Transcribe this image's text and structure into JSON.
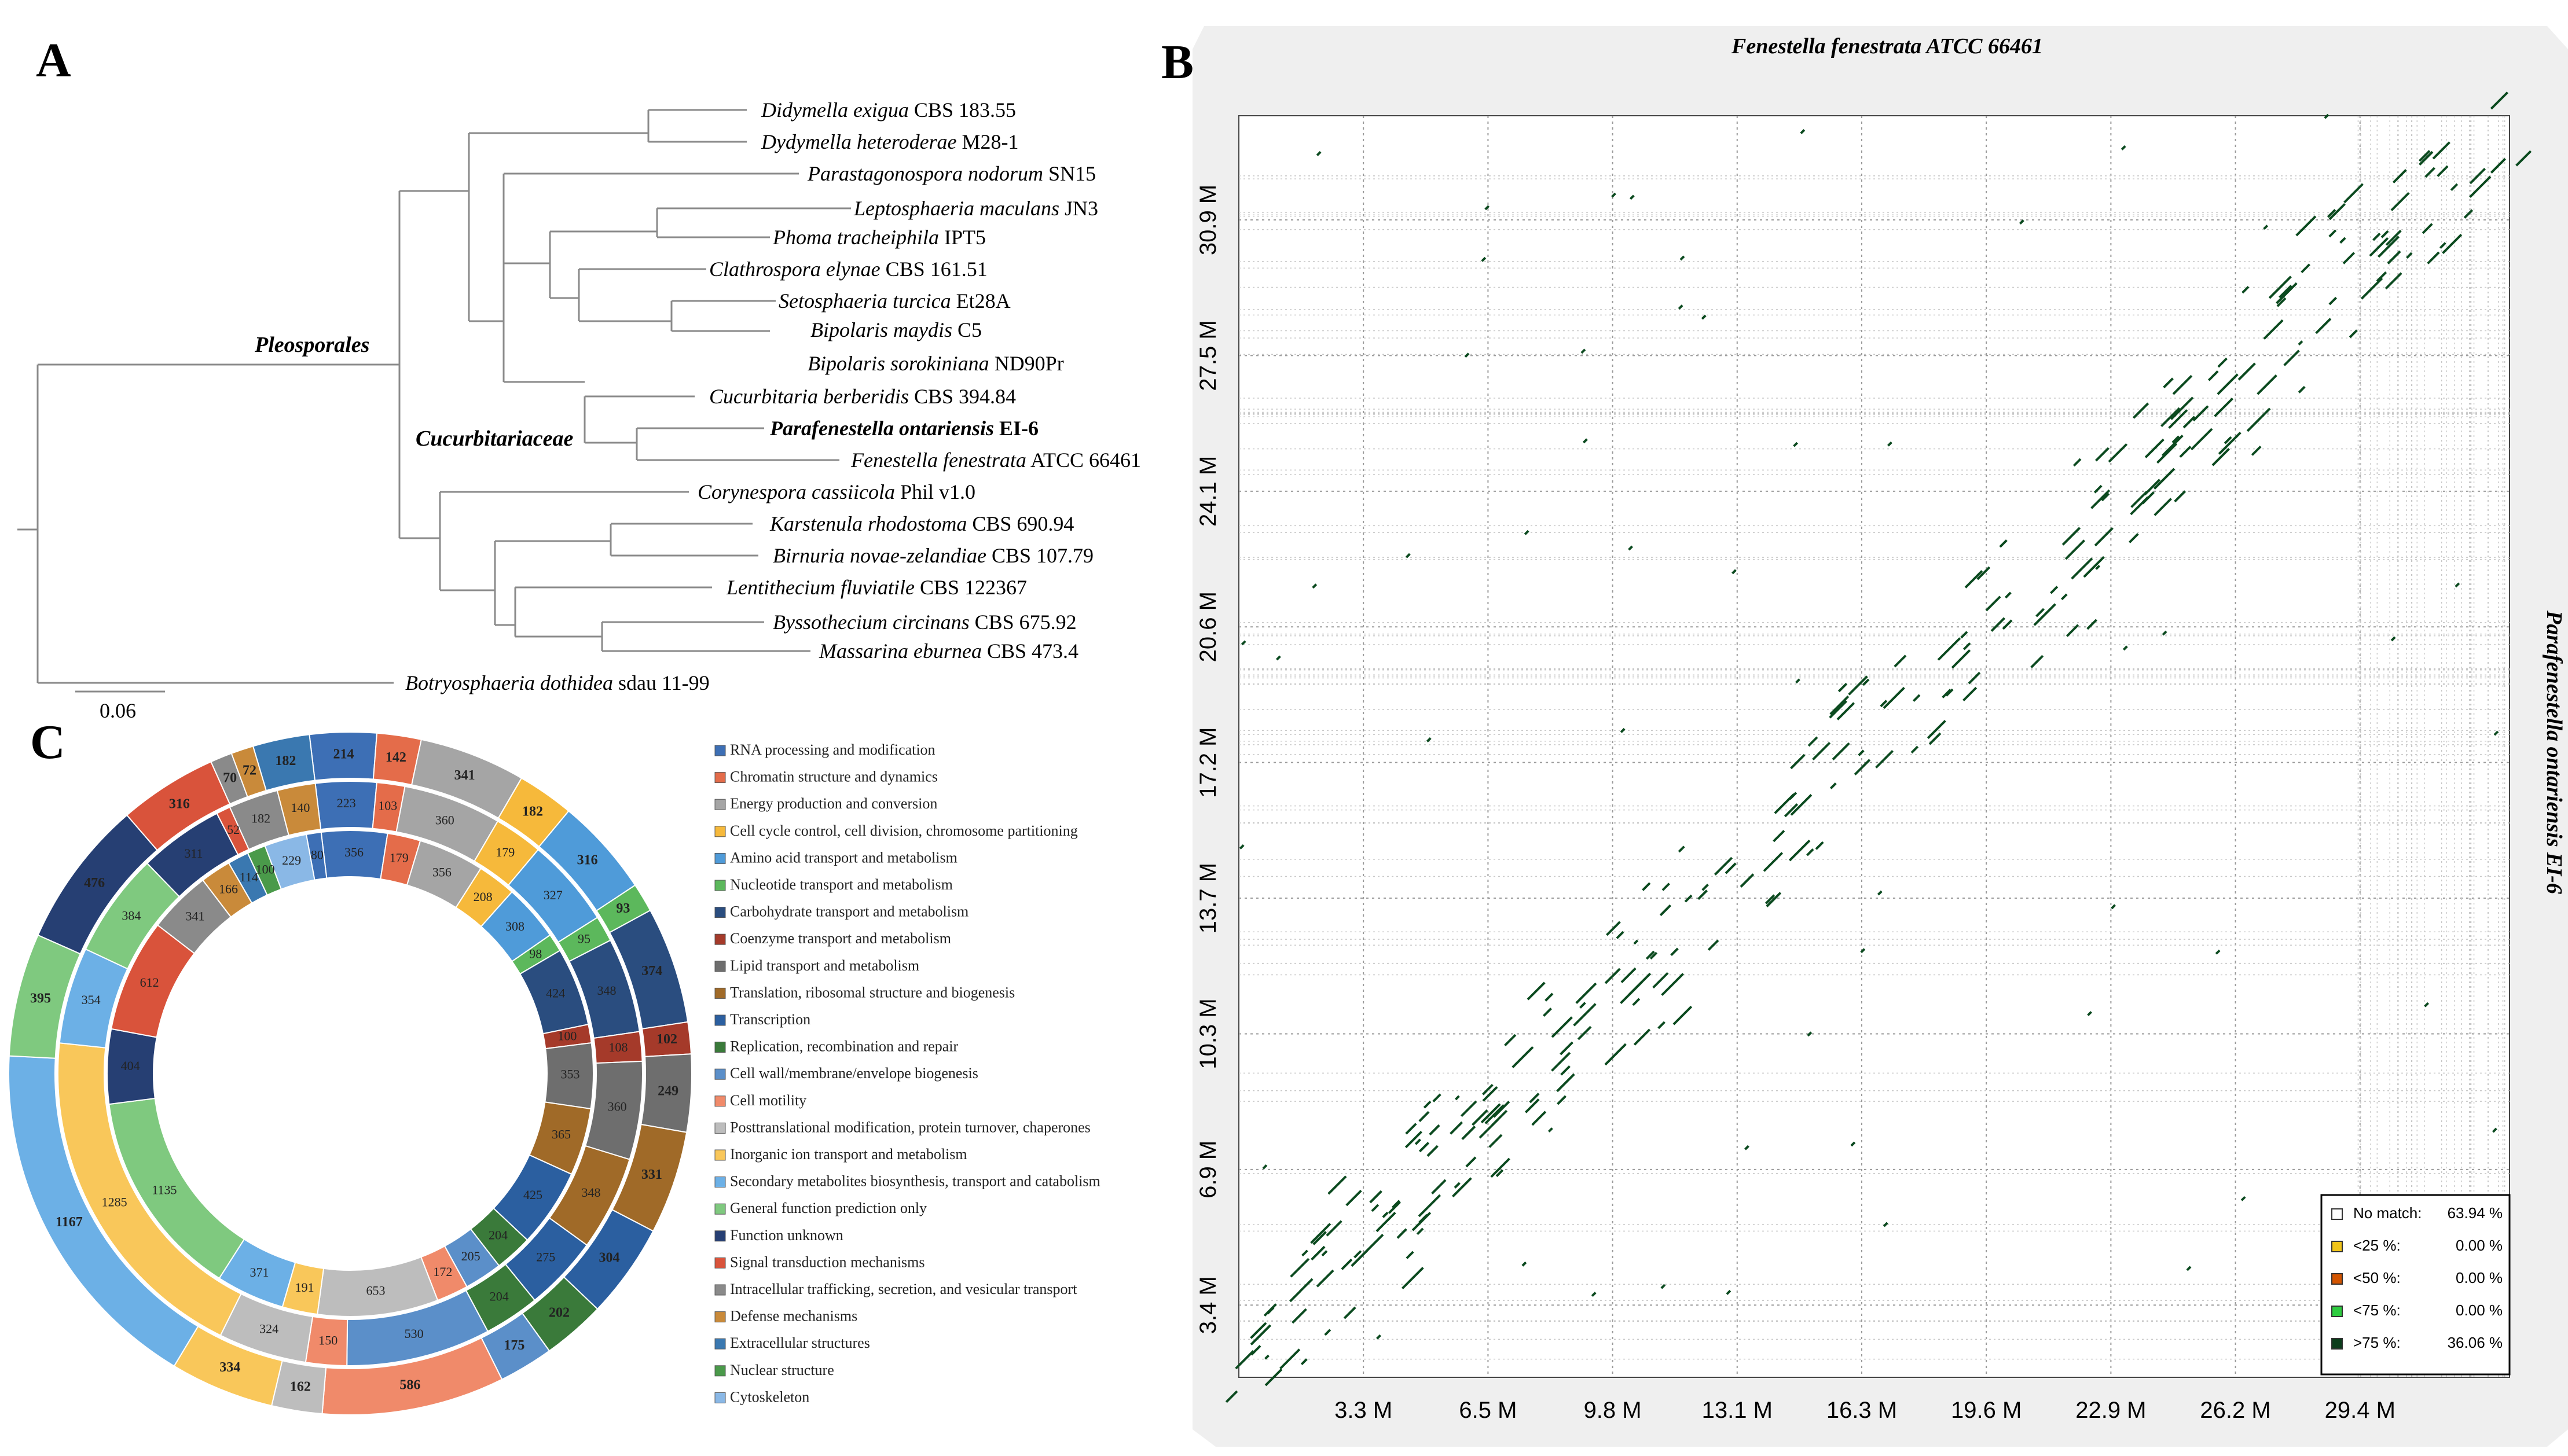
{
  "panels": {
    "a": "A",
    "b": "B",
    "c": "C"
  },
  "phylogeny": {
    "taxa": [
      {
        "genus": "Didymella exigua",
        "strain": " CBS 183.55"
      },
      {
        "genus": "Dydymella heteroderae",
        "strain": " M28-1"
      },
      {
        "genus": "Parastagonospora nodorum",
        "strain": " SN15"
      },
      {
        "genus": "Leptosphaeria maculans",
        "strain": " JN3"
      },
      {
        "genus": "Phoma tracheiphila",
        "strain": " IPT5"
      },
      {
        "genus": "Clathrospora elynae",
        "strain": " CBS 161.51"
      },
      {
        "genus": "Setosphaeria turcica",
        "strain": " Et28A"
      },
      {
        "genus": "Bipolaris maydis",
        "strain": " C5"
      },
      {
        "genus": "Bipolaris sorokiniana",
        "strain": " ND90Pr"
      },
      {
        "genus": "Cucurbitaria berberidis",
        "strain": " CBS 394.84"
      },
      {
        "genus": "Parafenestella ontariensis",
        "strain": " EI-6"
      },
      {
        "genus": "Fenestella fenestrata",
        "strain": " ATCC 66461"
      },
      {
        "genus": "Corynespora cassiicola",
        "strain": " Phil v1.0"
      },
      {
        "genus": "Karstenula rhodostoma",
        "strain": " CBS 690.94"
      },
      {
        "genus": "Birnuria novae-zelandiae",
        "strain": " CBS 107.79"
      },
      {
        "genus": "Lentithecium fluviatile",
        "strain": " CBS 122367"
      },
      {
        "genus": "Byssothecium circinans",
        "strain": " CBS  675.92"
      },
      {
        "genus": "Massarina eburnea",
        "strain": " CBS 473.4"
      },
      {
        "genus": "Botryosphaeria dothidea",
        "strain": " sdau 11-99"
      }
    ],
    "clade_order": "Pleosporales",
    "clade_family": "Cucurbitariaceae",
    "scale_label": "0.06"
  },
  "cog_legend": {
    "categories": [
      {
        "label": "RNA processing and modification",
        "color": "#3d6fb5"
      },
      {
        "label": "Chromatin structure and dynamics",
        "color": "#e46c4a"
      },
      {
        "label": "Energy production and conversion",
        "color": "#a5a5a5"
      },
      {
        "label": "Cell cycle control, cell division, chromosome partitioning",
        "color": "#f6b93b"
      },
      {
        "label": "Amino acid transport and metabolism",
        "color": "#4f9bd9"
      },
      {
        "label": "Nucleotide transport and metabolism",
        "color": "#5cb85c"
      },
      {
        "label": "Carbohydrate transport and metabolism",
        "color": "#2a4d7f"
      },
      {
        "label": "Coenzyme transport and metabolism",
        "color": "#a53a2a"
      },
      {
        "label": "Lipid transport and metabolism",
        "color": "#6e6e6e"
      },
      {
        "label": "Translation, ribosomal structure and biogenesis",
        "color": "#a06a28"
      },
      {
        "label": "Transcription",
        "color": "#2b5fa0"
      },
      {
        "label": "Replication, recombination and repair",
        "color": "#3a7a3a"
      },
      {
        "label": "Cell wall/membrane/envelope biogenesis",
        "color": "#5b8fc9"
      },
      {
        "label": "Cell motility",
        "color": "#f08a6a"
      },
      {
        "label": "Posttranslational modification, protein turnover, chaperones",
        "color": "#bdbdbd"
      },
      {
        "label": "Inorganic ion transport and metabolism",
        "color": "#f9c75a"
      },
      {
        "label": "Secondary metabolites biosynthesis, transport and catabolism",
        "color": "#6cb0e6"
      },
      {
        "label": "General function prediction only",
        "color": "#7fc97f"
      },
      {
        "label": "Function unknown",
        "color": "#263f73"
      },
      {
        "label": "Signal transduction mechanisms",
        "color": "#d9533b"
      },
      {
        "label": "Intracellular trafficking, secretion, and vesicular transport",
        "color": "#8a8a8a"
      },
      {
        "label": "Defense mechanisms",
        "color": "#c98a3a"
      },
      {
        "label": "Extracellular structures",
        "color": "#3a78b0"
      },
      {
        "label": "Nuclear structure",
        "color": "#4a9a4a"
      },
      {
        "label": "Cytoskeleton",
        "color": "#8ab8e6"
      }
    ]
  },
  "cog_ring_labels": {
    "outer": [
      "214",
      "142",
      "341",
      "182",
      "316",
      "93",
      "374",
      "102",
      "249",
      "331",
      "304",
      "202",
      "175",
      "586",
      "162",
      "334",
      "1167",
      "395",
      "476",
      "316",
      "70",
      "72",
      "182"
    ],
    "middle": [
      "223",
      "103",
      "360",
      "179",
      "327",
      "95",
      "348",
      "108",
      "360",
      "348",
      "275",
      "204",
      "530",
      "150",
      "324",
      "1285",
      "354",
      "384",
      "311",
      "52",
      "182",
      "140"
    ],
    "inner": [
      "356",
      "179",
      "356",
      "208",
      "308",
      "98",
      "424",
      "100",
      "353",
      "365",
      "425",
      "204",
      "205",
      "172",
      "653",
      "191",
      "371",
      "1135",
      "404",
      "612",
      "341",
      "166",
      "114",
      "100",
      "229",
      "80"
    ]
  },
  "dotplot": {
    "title": "Fenestella fenestrata ATCC 66461",
    "ylabel": "Parafenestella ontariensis EI-6",
    "x_ticks": [
      "3.3 M",
      "6.5 M",
      "9.8 M",
      "13.1 M",
      "16.3 M",
      "19.6 M",
      "22.9 M",
      "26.2 M",
      "29.4 M"
    ],
    "y_ticks": [
      "30.9 M",
      "27.5 M",
      "24.1 M",
      "20.6 M",
      "17.2 M",
      "13.7 M",
      "10.3 M",
      "6.9 M",
      "3.4 M"
    ],
    "legend": [
      {
        "label": "No match:",
        "value": "63.94 %",
        "color": "#ffffff"
      },
      {
        "label": "<25 %:",
        "value": "0.00 %",
        "color": "#f0c419"
      },
      {
        "label": "<50 %:",
        "value": "0.00 %",
        "color": "#d35400"
      },
      {
        "label": "<75 %:",
        "value": "0.00 %",
        "color": "#2ecc40"
      },
      {
        "label": ">75 %:",
        "value": "36.06 %",
        "color": "#0b3d1b"
      }
    ]
  }
}
